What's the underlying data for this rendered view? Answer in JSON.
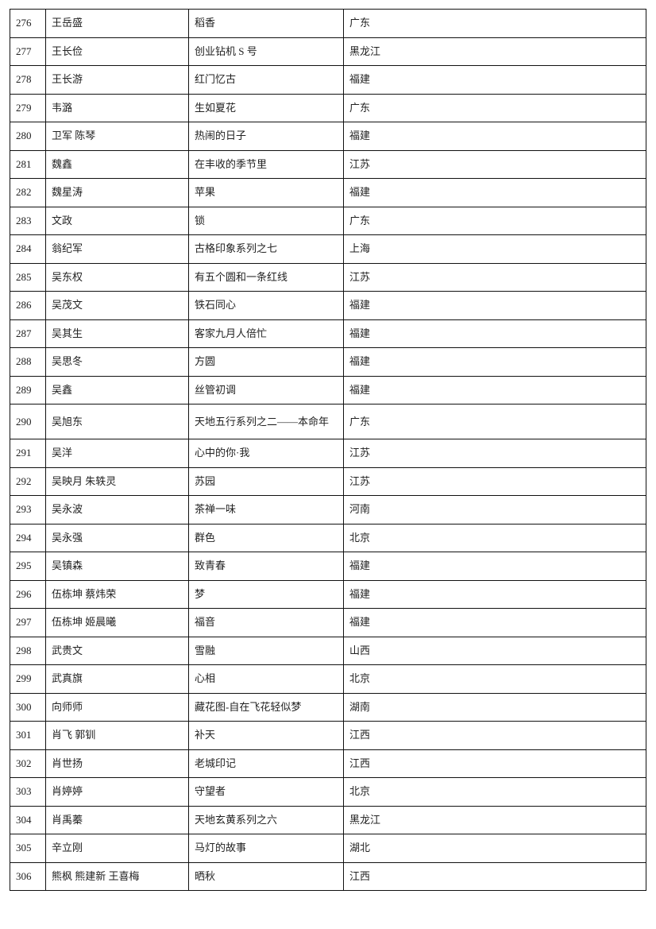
{
  "rows": [
    [
      "276",
      "王岳盛",
      "稻香",
      "广东"
    ],
    [
      "277",
      "王长俭",
      "创业钻机 S 号",
      "黑龙江"
    ],
    [
      "278",
      "王长游",
      "红门忆古",
      "福建"
    ],
    [
      "279",
      "韦潞",
      "生如夏花",
      "广东"
    ],
    [
      "280",
      "卫军  陈琴",
      "热闹的日子",
      "福建"
    ],
    [
      "281",
      "魏鑫",
      "在丰收的季节里",
      "江苏"
    ],
    [
      "282",
      "魏星涛",
      "苹果",
      "福建"
    ],
    [
      "283",
      "文政",
      "锁",
      "广东"
    ],
    [
      "284",
      "翁纪军",
      "古格印象系列之七",
      "上海"
    ],
    [
      "285",
      "吴东权",
      "有五个圆和一条红线",
      "江苏"
    ],
    [
      "286",
      "吴茂文",
      "铁石同心",
      "福建"
    ],
    [
      "287",
      "吴其生",
      "客家九月人倍忙",
      "福建"
    ],
    [
      "288",
      "吴思冬",
      "方圆",
      "福建"
    ],
    [
      "289",
      "吴鑫",
      "丝管初调",
      "福建"
    ],
    [
      "290",
      "吴旭东",
      "天地五行系列之二——本命年",
      "广东"
    ],
    [
      "291",
      "吴洋",
      "心中的你·我",
      "江苏"
    ],
    [
      "292",
      "吴映月  朱轶灵",
      "苏园",
      "江苏"
    ],
    [
      "293",
      "吴永波",
      "茶禅一味",
      "河南"
    ],
    [
      "294",
      "吴永强",
      "群色",
      "北京"
    ],
    [
      "295",
      "吴镇森",
      "致青春",
      "福建"
    ],
    [
      "296",
      "伍栋坤  蔡炜荣",
      "梦",
      "福建"
    ],
    [
      "297",
      "伍栋坤  姬晨曦",
      "福音",
      "福建"
    ],
    [
      "298",
      "武贵文",
      "雪融",
      "山西"
    ],
    [
      "299",
      "武真旗",
      "心相",
      "北京"
    ],
    [
      "300",
      "向师师",
      "藏花图-自在飞花轻似梦",
      "湖南"
    ],
    [
      "301",
      "肖飞  郭钏",
      "补天",
      "江西"
    ],
    [
      "302",
      "肖世扬",
      "老城印记",
      "江西"
    ],
    [
      "303",
      "肖婷婷",
      "守望者",
      "北京"
    ],
    [
      "304",
      "肖禹蓁",
      "天地玄黄系列之六",
      "黑龙江"
    ],
    [
      "305",
      "辛立刚",
      "马灯的故事",
      "湖北"
    ],
    [
      "306",
      "熊枫  熊建新  王喜梅",
      "晒秋",
      "江西"
    ]
  ]
}
